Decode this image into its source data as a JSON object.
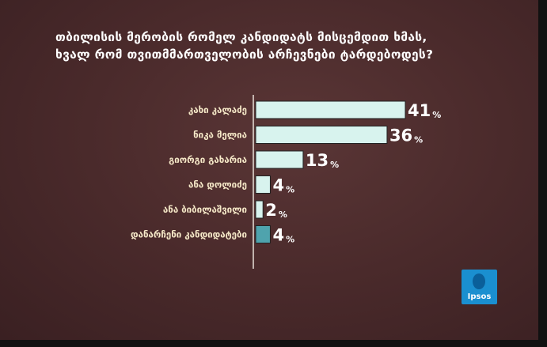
{
  "chart_data": {
    "type": "bar",
    "orientation": "horizontal",
    "title": "თბილისის მერობის რომელ კანდიდატს მისცემდით ხმას, ხვალ რომ თვითმმართველობის არჩევნები ტარდებოდეს?",
    "title_lines": [
      "თბილისის მერობის რომელ კანდიდატს მისცემდით ხმას,",
      "ხვალ რომ თვითმმართველობის არჩევნები ტარდებოდეს?"
    ],
    "categories": [
      "კახი კალაძე",
      "ნიკა მელია",
      "გიორგი გახარია",
      "ანა დოლიძე",
      "ანა ბიბილაშვილი",
      "დანარჩენი კანდიდატები"
    ],
    "values": [
      41,
      36,
      13,
      4,
      2,
      4
    ],
    "unit": "%",
    "bar_colors": [
      "#d8f3ee",
      "#d8f3ee",
      "#d8f3ee",
      "#d8f3ee",
      "#d8f3ee",
      "#4fa3ad"
    ],
    "xlim": [
      0,
      41
    ],
    "grid": false,
    "legend": "none"
  },
  "logo": {
    "text": "Ipsos",
    "color": "#1a8fd0"
  }
}
